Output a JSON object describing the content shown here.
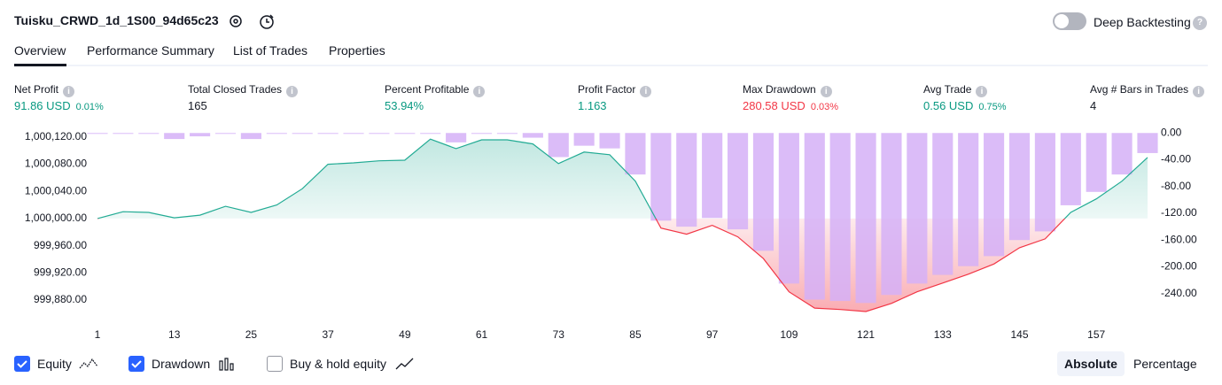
{
  "header": {
    "title": "Tuisku_CRWD_1d_1S00_94d65c23",
    "toggle_label": "Deep Backtesting"
  },
  "tabs": [
    "Overview",
    "Performance Summary",
    "List of Trades",
    "Properties"
  ],
  "metrics": [
    {
      "label": "Net Profit",
      "value": "91.86 USD",
      "percent": "0.01%"
    },
    {
      "label": "Total Closed Trades",
      "value": "165"
    },
    {
      "label": "Percent Profitable",
      "value": "53.94%"
    },
    {
      "label": "Profit Factor",
      "value": "1.163"
    },
    {
      "label": "Max Drawdown",
      "value": "280.58 USD",
      "percent": "0.03%"
    },
    {
      "label": "Avg Trade",
      "value": "0.56 USD",
      "percent": "0.75%"
    },
    {
      "label": "Avg # Bars in Trades",
      "value": "4"
    }
  ],
  "chart_data": {
    "type": "line",
    "x": [
      1,
      5,
      9,
      13,
      17,
      21,
      25,
      29,
      33,
      37,
      41,
      45,
      49,
      53,
      57,
      61,
      65,
      69,
      73,
      77,
      81,
      85,
      89,
      93,
      97,
      101,
      105,
      109,
      113,
      117,
      121,
      125,
      129,
      133,
      137,
      141,
      145,
      149,
      153,
      157,
      161,
      165
    ],
    "series": [
      {
        "name": "Equity",
        "color": "#22ab94",
        "negative_color": "#f23645",
        "values": [
          1000000,
          1000010,
          1000009,
          1000001,
          1000005,
          1000018,
          1000009,
          1000020,
          1000044,
          1000080,
          1000082,
          1000085,
          1000086,
          1000117,
          1000103,
          1000116,
          1000116,
          1000110,
          1000081,
          1000098,
          1000094,
          1000055,
          999986,
          999977,
          999990,
          999973,
          999941,
          999892,
          999868,
          999866,
          999863,
          999875,
          999892,
          999905,
          999918,
          999933,
          999957,
          999970,
          1000009,
          1000029,
          1000055,
          1000090
        ]
      },
      {
        "name": "Drawdown",
        "type": "bar",
        "axis": "y2",
        "color": "#d5b0f7",
        "values": [
          0,
          0,
          -1,
          -9,
          -5,
          0,
          -9,
          0,
          0,
          0,
          0,
          0,
          0,
          0,
          -14,
          -1,
          -1,
          -7,
          -36,
          -19,
          -23,
          -62,
          -131,
          -140,
          -127,
          -144,
          -176,
          -225,
          -249,
          -251,
          -254,
          -242,
          -225,
          -212,
          -199,
          -184,
          -160,
          -147,
          -108,
          -88,
          -62,
          -30
        ]
      }
    ],
    "xlim": [
      1,
      165
    ],
    "xticks": [
      1,
      13,
      25,
      37,
      49,
      61,
      73,
      85,
      97,
      109,
      121,
      133,
      145,
      157
    ],
    "ylim": [
      999846,
      1000129
    ],
    "yticks": [
      {
        "value": 1000120,
        "label": "1,000,120.00"
      },
      {
        "value": 1000080,
        "label": "1,000,080.00"
      },
      {
        "value": 1000040,
        "label": "1,000,040.00"
      },
      {
        "value": 1000000,
        "label": "1,000,000.00"
      },
      {
        "value": 999960,
        "label": "999,960.00"
      },
      {
        "value": 999920,
        "label": "999,920.00"
      },
      {
        "value": 999880,
        "label": "999,880.00"
      }
    ],
    "y2lim": [
      -284,
      3
    ],
    "y2ticks": [
      {
        "value": 0,
        "label": "0.00"
      },
      {
        "value": -40,
        "label": "-40.00"
      },
      {
        "value": -80,
        "label": "-80.00"
      },
      {
        "value": -120,
        "label": "-120.00"
      },
      {
        "value": -160,
        "label": "-160.00"
      },
      {
        "value": -200,
        "label": "-200.00"
      },
      {
        "value": -240,
        "label": "-240.00"
      }
    ]
  },
  "controls": {
    "buy_hold": "Buy & hold equity",
    "absolute": "Absolute",
    "percentage": "Percentage"
  }
}
